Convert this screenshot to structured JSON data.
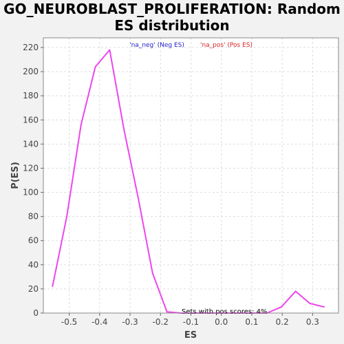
{
  "chart_data": {
    "type": "line",
    "title_lines": [
      "GO_NEUROBLAST_PROLIFERATION: Random",
      "ES distribution"
    ],
    "xlabel": "ES",
    "ylabel": "P(ES)",
    "xlim": [
      -0.585,
      0.385
    ],
    "ylim": [
      0,
      228
    ],
    "x_ticks": [
      -0.5,
      -0.4,
      -0.3,
      -0.2,
      -0.1,
      0.0,
      0.1,
      0.2,
      0.3
    ],
    "x_tick_labels": [
      "-0.5",
      "-0.4",
      "-0.3",
      "-0.2",
      "-0.1",
      "0.0",
      "0.1",
      "0.2",
      "0.3"
    ],
    "y_ticks": [
      0,
      20,
      40,
      60,
      80,
      100,
      120,
      140,
      160,
      180,
      200,
      220
    ],
    "y_tick_labels": [
      "0",
      "20",
      "40",
      "60",
      "80",
      "100",
      "120",
      "140",
      "160",
      "180",
      "200",
      "220"
    ],
    "grid": true,
    "legend": [
      {
        "label": "'na_neg' (Neg ES)",
        "color": "#2222cc"
      },
      {
        "label": "'na_pos' (Pos ES)",
        "color": "#dd2222"
      }
    ],
    "annotation": "Sets with pos scores: 4%",
    "series": [
      {
        "color": "#ee44ee",
        "x": [
          -0.555,
          -0.508,
          -0.461,
          -0.414,
          -0.367,
          -0.32,
          -0.273,
          -0.226,
          -0.179,
          -0.132,
          -0.085,
          -0.038,
          0.009,
          0.056,
          0.103,
          0.15,
          0.197,
          0.244,
          0.291,
          0.338
        ],
        "y": [
          22,
          80,
          156,
          204,
          218,
          152,
          95,
          33,
          1,
          0,
          0,
          0,
          0,
          0,
          0,
          0,
          5,
          18,
          8,
          5
        ]
      }
    ]
  }
}
